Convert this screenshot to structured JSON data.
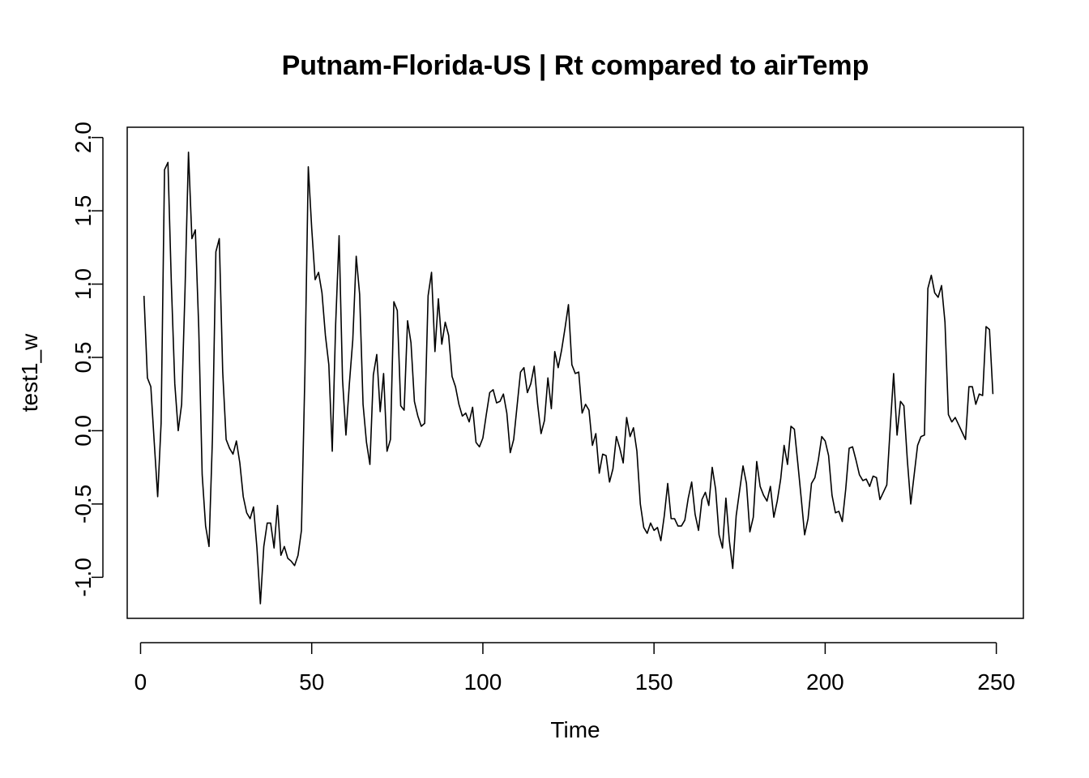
{
  "chart_data": {
    "type": "line",
    "title": "Putnam-Florida-US | Rt compared to airTemp",
    "xlabel": "Time",
    "ylabel": "test1_w",
    "xlim": [
      -3.9,
      257.9
    ],
    "ylim": [
      -1.28,
      2.07
    ],
    "xticks": [
      0,
      50,
      100,
      150,
      200,
      250
    ],
    "yticks": [
      -1.0,
      -0.5,
      0.0,
      0.5,
      1.0,
      1.5,
      2.0
    ],
    "grid": false,
    "series": [
      {
        "color": "#000000",
        "points": [
          [
            1,
            0.92
          ],
          [
            2,
            0.36
          ],
          [
            3,
            0.3
          ],
          [
            4,
            -0.08
          ],
          [
            5,
            -0.45
          ],
          [
            6,
            0.05
          ],
          [
            7,
            1.78
          ],
          [
            8,
            1.83
          ],
          [
            9,
            1.0
          ],
          [
            10,
            0.32
          ],
          [
            11,
            0.0
          ],
          [
            12,
            0.18
          ],
          [
            13,
            0.97
          ],
          [
            14,
            1.9
          ],
          [
            15,
            1.31
          ],
          [
            16,
            1.37
          ],
          [
            17,
            0.7
          ],
          [
            18,
            -0.3
          ],
          [
            19,
            -0.65
          ],
          [
            20,
            -0.79
          ],
          [
            21,
            -0.05
          ],
          [
            22,
            1.22
          ],
          [
            23,
            1.31
          ],
          [
            24,
            0.4
          ],
          [
            25,
            -0.06
          ],
          [
            26,
            -0.12
          ],
          [
            27,
            -0.16
          ],
          [
            28,
            -0.07
          ],
          [
            29,
            -0.22
          ],
          [
            30,
            -0.45
          ],
          [
            31,
            -0.56
          ],
          [
            32,
            -0.6
          ],
          [
            33,
            -0.52
          ],
          [
            34,
            -0.8
          ],
          [
            35,
            -1.18
          ],
          [
            36,
            -0.79
          ],
          [
            37,
            -0.63
          ],
          [
            38,
            -0.63
          ],
          [
            39,
            -0.8
          ],
          [
            40,
            -0.51
          ],
          [
            41,
            -0.85
          ],
          [
            42,
            -0.79
          ],
          [
            43,
            -0.87
          ],
          [
            44,
            -0.89
          ],
          [
            45,
            -0.92
          ],
          [
            46,
            -0.85
          ],
          [
            47,
            -0.68
          ],
          [
            48,
            0.38
          ],
          [
            49,
            1.8
          ],
          [
            50,
            1.38
          ],
          [
            51,
            1.03
          ],
          [
            52,
            1.08
          ],
          [
            53,
            0.94
          ],
          [
            54,
            0.65
          ],
          [
            55,
            0.45
          ],
          [
            56,
            -0.14
          ],
          [
            57,
            0.73
          ],
          [
            58,
            1.33
          ],
          [
            59,
            0.35
          ],
          [
            60,
            -0.03
          ],
          [
            61,
            0.32
          ],
          [
            62,
            0.62
          ],
          [
            63,
            1.19
          ],
          [
            64,
            0.93
          ],
          [
            65,
            0.18
          ],
          [
            66,
            -0.08
          ],
          [
            67,
            -0.23
          ],
          [
            68,
            0.38
          ],
          [
            69,
            0.52
          ],
          [
            70,
            0.13
          ],
          [
            71,
            0.39
          ],
          [
            72,
            -0.14
          ],
          [
            73,
            -0.06
          ],
          [
            74,
            0.88
          ],
          [
            75,
            0.82
          ],
          [
            76,
            0.17
          ],
          [
            77,
            0.14
          ],
          [
            78,
            0.75
          ],
          [
            79,
            0.6
          ],
          [
            80,
            0.2
          ],
          [
            81,
            0.1
          ],
          [
            82,
            0.03
          ],
          [
            83,
            0.05
          ],
          [
            84,
            0.92
          ],
          [
            85,
            1.08
          ],
          [
            86,
            0.54
          ],
          [
            87,
            0.9
          ],
          [
            88,
            0.59
          ],
          [
            89,
            0.74
          ],
          [
            90,
            0.65
          ],
          [
            91,
            0.37
          ],
          [
            92,
            0.3
          ],
          [
            93,
            0.18
          ],
          [
            94,
            0.1
          ],
          [
            95,
            0.12
          ],
          [
            96,
            0.06
          ],
          [
            97,
            0.16
          ],
          [
            98,
            -0.08
          ],
          [
            99,
            -0.11
          ],
          [
            100,
            -0.05
          ],
          [
            101,
            0.11
          ],
          [
            102,
            0.26
          ],
          [
            103,
            0.28
          ],
          [
            104,
            0.19
          ],
          [
            105,
            0.2
          ],
          [
            106,
            0.25
          ],
          [
            107,
            0.12
          ],
          [
            108,
            -0.15
          ],
          [
            109,
            -0.06
          ],
          [
            110,
            0.17
          ],
          [
            111,
            0.4
          ],
          [
            112,
            0.43
          ],
          [
            113,
            0.26
          ],
          [
            114,
            0.32
          ],
          [
            115,
            0.44
          ],
          [
            116,
            0.18
          ],
          [
            117,
            -0.02
          ],
          [
            118,
            0.07
          ],
          [
            119,
            0.36
          ],
          [
            120,
            0.15
          ],
          [
            121,
            0.54
          ],
          [
            122,
            0.43
          ],
          [
            123,
            0.55
          ],
          [
            124,
            0.7
          ],
          [
            125,
            0.86
          ],
          [
            126,
            0.45
          ],
          [
            127,
            0.39
          ],
          [
            128,
            0.4
          ],
          [
            129,
            0.12
          ],
          [
            130,
            0.18
          ],
          [
            131,
            0.14
          ],
          [
            132,
            -0.1
          ],
          [
            133,
            -0.02
          ],
          [
            134,
            -0.29
          ],
          [
            135,
            -0.16
          ],
          [
            136,
            -0.17
          ],
          [
            137,
            -0.35
          ],
          [
            138,
            -0.26
          ],
          [
            139,
            -0.04
          ],
          [
            140,
            -0.12
          ],
          [
            141,
            -0.22
          ],
          [
            142,
            0.09
          ],
          [
            143,
            -0.04
          ],
          [
            144,
            0.02
          ],
          [
            145,
            -0.14
          ],
          [
            146,
            -0.5
          ],
          [
            147,
            -0.66
          ],
          [
            148,
            -0.7
          ],
          [
            149,
            -0.63
          ],
          [
            150,
            -0.68
          ],
          [
            151,
            -0.66
          ],
          [
            152,
            -0.75
          ],
          [
            153,
            -0.58
          ],
          [
            154,
            -0.36
          ],
          [
            155,
            -0.6
          ],
          [
            156,
            -0.6
          ],
          [
            157,
            -0.65
          ],
          [
            158,
            -0.65
          ],
          [
            159,
            -0.61
          ],
          [
            160,
            -0.46
          ],
          [
            161,
            -0.35
          ],
          [
            162,
            -0.57
          ],
          [
            163,
            -0.68
          ],
          [
            164,
            -0.47
          ],
          [
            165,
            -0.42
          ],
          [
            166,
            -0.51
          ],
          [
            167,
            -0.25
          ],
          [
            168,
            -0.4
          ],
          [
            169,
            -0.71
          ],
          [
            170,
            -0.8
          ],
          [
            171,
            -0.46
          ],
          [
            172,
            -0.75
          ],
          [
            173,
            -0.94
          ],
          [
            174,
            -0.58
          ],
          [
            175,
            -0.41
          ],
          [
            176,
            -0.24
          ],
          [
            177,
            -0.36
          ],
          [
            178,
            -0.69
          ],
          [
            179,
            -0.59
          ],
          [
            180,
            -0.21
          ],
          [
            181,
            -0.38
          ],
          [
            182,
            -0.44
          ],
          [
            183,
            -0.48
          ],
          [
            184,
            -0.38
          ],
          [
            185,
            -0.59
          ],
          [
            186,
            -0.48
          ],
          [
            187,
            -0.33
          ],
          [
            188,
            -0.1
          ],
          [
            189,
            -0.23
          ],
          [
            190,
            0.03
          ],
          [
            191,
            0.01
          ],
          [
            192,
            -0.22
          ],
          [
            193,
            -0.46
          ],
          [
            194,
            -0.71
          ],
          [
            195,
            -0.6
          ],
          [
            196,
            -0.36
          ],
          [
            197,
            -0.32
          ],
          [
            198,
            -0.2
          ],
          [
            199,
            -0.04
          ],
          [
            200,
            -0.07
          ],
          [
            201,
            -0.17
          ],
          [
            202,
            -0.44
          ],
          [
            203,
            -0.56
          ],
          [
            204,
            -0.55
          ],
          [
            205,
            -0.62
          ],
          [
            206,
            -0.4
          ],
          [
            207,
            -0.12
          ],
          [
            208,
            -0.11
          ],
          [
            209,
            -0.2
          ],
          [
            210,
            -0.3
          ],
          [
            211,
            -0.34
          ],
          [
            212,
            -0.33
          ],
          [
            213,
            -0.38
          ],
          [
            214,
            -0.31
          ],
          [
            215,
            -0.32
          ],
          [
            216,
            -0.47
          ],
          [
            217,
            -0.42
          ],
          [
            218,
            -0.37
          ],
          [
            219,
            0.02
          ],
          [
            220,
            0.39
          ],
          [
            221,
            -0.03
          ],
          [
            222,
            0.2
          ],
          [
            223,
            0.17
          ],
          [
            224,
            -0.2
          ],
          [
            225,
            -0.5
          ],
          [
            226,
            -0.3
          ],
          [
            227,
            -0.1
          ],
          [
            228,
            -0.04
          ],
          [
            229,
            -0.03
          ],
          [
            230,
            0.97
          ],
          [
            231,
            1.06
          ],
          [
            232,
            0.94
          ],
          [
            233,
            0.91
          ],
          [
            234,
            0.99
          ],
          [
            235,
            0.74
          ],
          [
            236,
            0.11
          ],
          [
            237,
            0.06
          ],
          [
            238,
            0.09
          ],
          [
            239,
            0.04
          ],
          [
            240,
            -0.01
          ],
          [
            241,
            -0.06
          ],
          [
            242,
            0.3
          ],
          [
            243,
            0.3
          ],
          [
            244,
            0.18
          ],
          [
            245,
            0.25
          ],
          [
            246,
            0.24
          ],
          [
            247,
            0.71
          ],
          [
            248,
            0.69
          ],
          [
            249,
            0.25
          ]
        ]
      }
    ]
  }
}
